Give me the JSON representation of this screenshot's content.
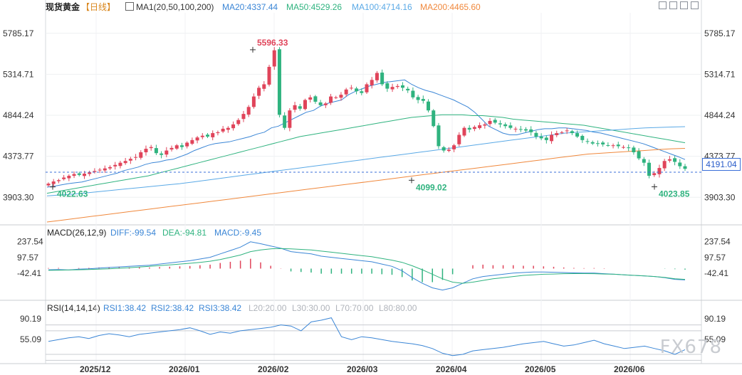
{
  "header": {
    "symbol": "现货黄金",
    "period": "【日线】",
    "ma_label": "MA1(20,50,100,200)",
    "ma20": "MA20:4337.44",
    "ma50": "MA50:4529.26",
    "ma100": "MA100:4714.16",
    "ma200": "MA200:4465.60"
  },
  "macd_header": {
    "label": "MACD(26,12,9)",
    "diff": "DIFF:-99.54",
    "dea": "DEA:-94.81",
    "macd": "MACD:-9.45"
  },
  "rsi_header": {
    "label": "RSI(14,14,14)",
    "rsi1": "RSI1:38.42",
    "rsi2": "RSI2:38.42",
    "rsi3": "RSI3:38.42",
    "l20": "L20:20.00",
    "l30": "L30:30.00",
    "l70": "L70:70.00",
    "l80": "L80:80.00"
  },
  "current_price": "4191.04",
  "watermark": "FX678",
  "colors": {
    "up": "#e0445a",
    "down": "#2fb37f",
    "ma20": "#3b86d6",
    "ma50": "#2fb37f",
    "ma100": "#5aa9e6",
    "ma200": "#f0883c",
    "diff": "#3b86d6",
    "dea": "#2fb37f",
    "rsi": "#3b86d6"
  },
  "icons": [
    "zoom-in-icon",
    "zoom-out-icon",
    "pan-left-icon",
    "pan-right-icon"
  ],
  "chart_data": [
    {
      "type": "candlestick",
      "title": "现货黄金 【日线】",
      "x_ticks": [
        "2025/12",
        "2026/01",
        "2026/02",
        "2026/03",
        "2026/04",
        "2026/05",
        "2026/06"
      ],
      "y_ticks": [
        "5785.17",
        "5314.71",
        "4844.24",
        "4373.77",
        "3903.30"
      ],
      "ylim": [
        3620,
        6020
      ],
      "annotations": [
        {
          "text": "5596.33",
          "type": "high"
        },
        {
          "text": "4022.63",
          "type": "low"
        },
        {
          "text": "4099.02",
          "type": "low"
        },
        {
          "text": "4023.85",
          "type": "low"
        }
      ],
      "current_price_line": 4191.04,
      "close_series": [
        4060,
        4085,
        4100,
        4130,
        4150,
        4170,
        4160,
        4175,
        4190,
        4205,
        4220,
        4235,
        4250,
        4275,
        4300,
        4320,
        4345,
        4365,
        4420,
        4460,
        4480,
        4410,
        4390,
        4440,
        4470,
        4500,
        4480,
        4530,
        4560,
        4590,
        4610,
        4600,
        4640,
        4650,
        4690,
        4700,
        4740,
        4790,
        4860,
        4940,
        5060,
        5160,
        5200,
        5400,
        5590,
        4850,
        4700,
        4900,
        4960,
        4920,
        5020,
        5050,
        5000,
        4960,
        4980,
        5060,
        5050,
        5080,
        5140,
        5160,
        5120,
        5100,
        5200,
        5250,
        5330,
        5200,
        5150,
        5170,
        5180,
        5160,
        5130,
        5050,
        5020,
        5010,
        4900,
        4720,
        4490,
        4440,
        4450,
        4500,
        4620,
        4700,
        4680,
        4710,
        4730,
        4740,
        4780,
        4760,
        4740,
        4720,
        4700,
        4690,
        4680,
        4670,
        4650,
        4600,
        4580,
        4560,
        4620,
        4640,
        4650,
        4670,
        4640,
        4600,
        4560,
        4540,
        4520,
        4520,
        4510,
        4500,
        4500,
        4490,
        4480,
        4470,
        4420,
        4350,
        4300,
        4150,
        4180,
        4240,
        4320,
        4340,
        4310,
        4260,
        4230
      ],
      "series": [
        {
          "name": "MA20",
          "values": [
            4020,
            4030,
            4045,
            4060,
            4070,
            4080,
            4100,
            4120,
            4140,
            4160,
            4180,
            4210,
            4230,
            4250,
            4280,
            4300,
            4310,
            4330,
            4340,
            4370,
            4400,
            4440,
            4470,
            4500,
            4520,
            4530,
            4540,
            4560,
            4580,
            4600,
            4630,
            4650,
            4700,
            4720,
            4760,
            4800,
            4840,
            4880,
            4900,
            4950,
            4980,
            5000,
            5020,
            5080,
            5120,
            5150,
            5180,
            5200,
            5220,
            5230,
            5240,
            5250,
            5200,
            5160,
            5130,
            5110,
            5080,
            5050,
            5020,
            4980,
            4940,
            4880,
            4800,
            4720,
            4680,
            4640,
            4620,
            4620,
            4640,
            4660,
            4680,
            4690,
            4690,
            4700,
            4700,
            4690,
            4680,
            4670,
            4650,
            4640,
            4620,
            4600,
            4580,
            4560,
            4540,
            4520,
            4490,
            4460,
            4430,
            4400,
            4370,
            4337
          ]
        },
        {
          "name": "MA50",
          "values": [
            3950,
            3970,
            3990,
            4010,
            4030,
            4050,
            4070,
            4090,
            4110,
            4130,
            4150,
            4180,
            4210,
            4240,
            4270,
            4300,
            4330,
            4360,
            4390,
            4420,
            4450,
            4480,
            4510,
            4540,
            4570,
            4600,
            4620,
            4640,
            4660,
            4680,
            4700,
            4720,
            4740,
            4760,
            4780,
            4800,
            4820,
            4830,
            4840,
            4850,
            4850,
            4850,
            4840,
            4840,
            4830,
            4820,
            4800,
            4790,
            4780,
            4770,
            4760,
            4750,
            4740,
            4730,
            4710,
            4690,
            4670,
            4650,
            4630,
            4610,
            4590,
            4570,
            4550,
            4529
          ]
        },
        {
          "name": "MA100",
          "values": [
            3920,
            3930,
            3940,
            3955,
            3970,
            3985,
            4000,
            4015,
            4030,
            4045,
            4060,
            4080,
            4100,
            4120,
            4140,
            4160,
            4180,
            4200,
            4220,
            4240,
            4260,
            4280,
            4300,
            4320,
            4340,
            4360,
            4380,
            4400,
            4420,
            4440,
            4460,
            4480,
            4500,
            4520,
            4540,
            4560,
            4580,
            4600,
            4620,
            4640,
            4650,
            4660,
            4670,
            4680,
            4690,
            4700,
            4705,
            4710,
            4714
          ]
        },
        {
          "name": "MA200",
          "values": [
            3620,
            3640,
            3660,
            3680,
            3700,
            3720,
            3740,
            3760,
            3780,
            3800,
            3820,
            3840,
            3860,
            3880,
            3900,
            3920,
            3940,
            3960,
            3980,
            4000,
            4020,
            4040,
            4060,
            4080,
            4100,
            4120,
            4140,
            4160,
            4180,
            4200,
            4220,
            4240,
            4260,
            4280,
            4300,
            4320,
            4340,
            4360,
            4380,
            4400,
            4410,
            4420,
            4430,
            4440,
            4450,
            4460,
            4465
          ]
        }
      ]
    },
    {
      "type": "bar",
      "title": "MACD(26,12,9)",
      "y_ticks": [
        "237.54",
        "97.57",
        "-42.41"
      ],
      "ylim": [
        -230,
        280
      ],
      "series": [
        {
          "name": "DIFF",
          "values": [
            -10,
            -8,
            -12,
            -5,
            -2,
            5,
            10,
            15,
            20,
            25,
            30,
            40,
            50,
            60,
            70,
            85,
            100,
            130,
            160,
            190,
            237,
            220,
            200,
            180,
            150,
            140,
            130,
            110,
            100,
            90,
            80,
            70,
            60,
            40,
            20,
            -20,
            -80,
            -130,
            -170,
            -190,
            -170,
            -130,
            -90,
            -70,
            -60,
            -50,
            -40,
            -35,
            -30,
            -30,
            -32,
            -35,
            -38,
            -40,
            -40,
            -45,
            -50,
            -55,
            -60,
            -65,
            -70,
            -80,
            -95,
            -100
          ]
        },
        {
          "name": "DEA",
          "values": [
            -15,
            -14,
            -12,
            -10,
            -8,
            -5,
            -2,
            3,
            8,
            14,
            20,
            26,
            33,
            40,
            47,
            55,
            65,
            80,
            100,
            120,
            150,
            165,
            175,
            178,
            175,
            170,
            165,
            155,
            145,
            135,
            125,
            115,
            105,
            90,
            75,
            55,
            25,
            -10,
            -50,
            -90,
            -120,
            -130,
            -120,
            -105,
            -90,
            -80,
            -70,
            -60,
            -55,
            -50,
            -48,
            -45,
            -44,
            -44,
            -45,
            -48,
            -50,
            -55,
            -60,
            -65,
            -70,
            -78,
            -90,
            -95
          ]
        },
        {
          "name": "MACD",
          "values": [
            5,
            6,
            0,
            5,
            6,
            10,
            12,
            12,
            12,
            11,
            10,
            14,
            17,
            20,
            23,
            30,
            35,
            50,
            60,
            70,
            87,
            55,
            25,
            2,
            -25,
            -30,
            -35,
            -45,
            -45,
            -45,
            -45,
            -45,
            -45,
            -50,
            -55,
            -75,
            -105,
            -120,
            -120,
            -100,
            -50,
            0,
            30,
            35,
            30,
            30,
            30,
            25,
            25,
            20,
            16,
            10,
            6,
            4,
            5,
            3,
            0,
            0,
            0,
            0,
            0,
            -2,
            -5,
            -9
          ]
        }
      ]
    },
    {
      "type": "line",
      "title": "RSI(14,14,14)",
      "y_ticks": [
        "90.19",
        "55.09"
      ],
      "ylim": [
        18,
        100
      ],
      "reference_lines": [
        20,
        30,
        70,
        80
      ],
      "series": [
        {
          "name": "RSI1",
          "values": [
            52,
            55,
            58,
            60,
            57,
            62,
            65,
            63,
            60,
            64,
            66,
            68,
            70,
            72,
            75,
            70,
            64,
            68,
            66,
            70,
            72,
            74,
            76,
            80,
            78,
            70,
            85,
            88,
            92,
            60,
            55,
            60,
            58,
            55,
            52,
            50,
            48,
            45,
            40,
            32,
            28,
            30,
            36,
            38,
            40,
            42,
            45,
            48,
            50,
            52,
            48,
            44,
            46,
            50,
            54,
            48,
            44,
            40,
            42,
            44,
            40,
            36,
            30,
            38
          ]
        },
        {
          "name": "RSI2",
          "values": [
            52,
            55,
            58,
            60,
            57,
            62,
            65,
            63,
            60,
            64,
            66,
            68,
            70,
            72,
            75,
            70,
            64,
            68,
            66,
            70,
            72,
            74,
            76,
            80,
            78,
            70,
            85,
            88,
            92,
            60,
            55,
            60,
            58,
            55,
            52,
            50,
            48,
            45,
            40,
            32,
            28,
            30,
            36,
            38,
            40,
            42,
            45,
            48,
            50,
            52,
            48,
            44,
            46,
            50,
            54,
            48,
            44,
            40,
            42,
            44,
            40,
            36,
            30,
            38
          ]
        },
        {
          "name": "RSI3",
          "values": [
            52,
            55,
            58,
            60,
            57,
            62,
            65,
            63,
            60,
            64,
            66,
            68,
            70,
            72,
            75,
            70,
            64,
            68,
            66,
            70,
            72,
            74,
            76,
            80,
            78,
            70,
            85,
            88,
            92,
            60,
            55,
            60,
            58,
            55,
            52,
            50,
            48,
            45,
            40,
            32,
            28,
            30,
            36,
            38,
            40,
            42,
            45,
            48,
            50,
            52,
            48,
            44,
            46,
            50,
            54,
            48,
            44,
            40,
            42,
            44,
            40,
            36,
            30,
            38
          ]
        }
      ]
    }
  ]
}
